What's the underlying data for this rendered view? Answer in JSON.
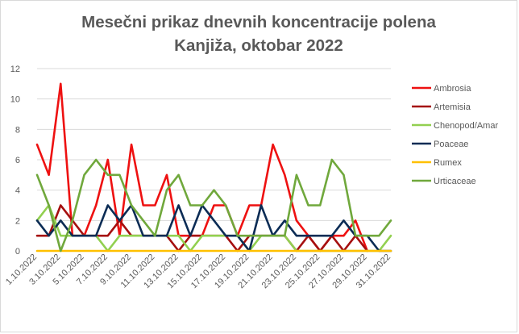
{
  "chart_data": {
    "type": "line",
    "title": [
      "Mesečni prikaz dnevnih koncentracije polena",
      "Kanjiža, oktobar 2022"
    ],
    "xlabel": "",
    "ylabel": "",
    "ylim": [
      0,
      12
    ],
    "yticks": [
      0,
      2,
      4,
      6,
      8,
      10,
      12
    ],
    "grid": "horizontal",
    "legend_position": "right",
    "x": [
      "1.10.2022",
      "2.10.2022",
      "3.10.2022",
      "4.10.2022",
      "5.10.2022",
      "6.10.2022",
      "7.10.2022",
      "8.10.2022",
      "9.10.2022",
      "10.10.2022",
      "11.10.2022",
      "12.10.2022",
      "13.10.2022",
      "14.10.2022",
      "15.10.2022",
      "16.10.2022",
      "17.10.2022",
      "18.10.2022",
      "19.10.2022",
      "20.10.2022",
      "21.10.2022",
      "22.10.2022",
      "23.10.2022",
      "24.10.2022",
      "25.10.2022",
      "26.10.2022",
      "27.10.2022",
      "28.10.2022",
      "29.10.2022",
      "30.10.2022",
      "31.10.2022"
    ],
    "x_tick_labels": [
      "1.10.2022",
      "3.10.2022",
      "5.10.2022",
      "7.10.2022",
      "9.10.2022",
      "11.10.2022",
      "13.10.2022",
      "15.10.2022",
      "17.10.2022",
      "19.10.2022",
      "21.10.2022",
      "23.10.2022",
      "25.10.2022",
      "27.10.2022",
      "29.10.2022",
      "31.10.2022"
    ],
    "series": [
      {
        "name": "Ambrosia",
        "color": "#ee1111",
        "values": [
          7,
          5,
          11,
          1,
          1,
          3,
          6,
          1,
          7,
          3,
          3,
          5,
          1,
          1,
          1,
          3,
          3,
          1,
          3,
          3,
          7,
          5,
          2,
          1,
          0,
          1,
          1,
          2,
          0,
          null,
          null
        ]
      },
      {
        "name": "Artemisia",
        "color": "#a50f0f",
        "values": [
          1,
          1,
          3,
          2,
          1,
          1,
          1,
          2,
          1,
          1,
          1,
          1,
          0,
          1,
          1,
          1,
          1,
          0,
          1,
          1,
          1,
          1,
          0,
          1,
          0,
          1,
          0,
          1,
          0,
          null,
          null
        ]
      },
      {
        "name": "Chenopod/Amar",
        "color": "#92d050",
        "values": [
          2,
          3,
          1,
          1,
          1,
          1,
          0,
          1,
          1,
          1,
          1,
          1,
          1,
          0,
          1,
          1,
          1,
          1,
          0,
          1,
          1,
          1,
          0,
          0,
          0,
          0,
          0,
          0,
          0,
          0,
          1
        ]
      },
      {
        "name": "Poaceae",
        "color": "#0b2c55",
        "values": [
          2,
          1,
          2,
          1,
          1,
          1,
          3,
          2,
          3,
          1,
          1,
          1,
          3,
          1,
          3,
          2,
          1,
          1,
          0,
          3,
          1,
          2,
          1,
          1,
          1,
          1,
          2,
          1,
          1,
          0,
          0
        ]
      },
      {
        "name": "Rumex",
        "color": "#ffc000",
        "values": [
          0,
          0,
          0,
          0,
          0,
          0,
          0,
          0,
          0,
          0,
          0,
          0,
          0,
          0,
          0,
          0,
          0,
          0,
          0,
          0,
          0,
          0,
          0,
          0,
          0,
          0,
          0,
          0,
          0,
          0,
          0
        ]
      },
      {
        "name": "Urticaceae",
        "color": "#70a83c",
        "values": [
          5,
          3,
          0,
          2,
          5,
          6,
          5,
          5,
          3,
          2,
          1,
          4,
          5,
          3,
          3,
          4,
          3,
          1,
          1,
          1,
          1,
          1,
          5,
          3,
          3,
          6,
          5,
          1,
          1,
          1,
          2
        ]
      }
    ]
  }
}
